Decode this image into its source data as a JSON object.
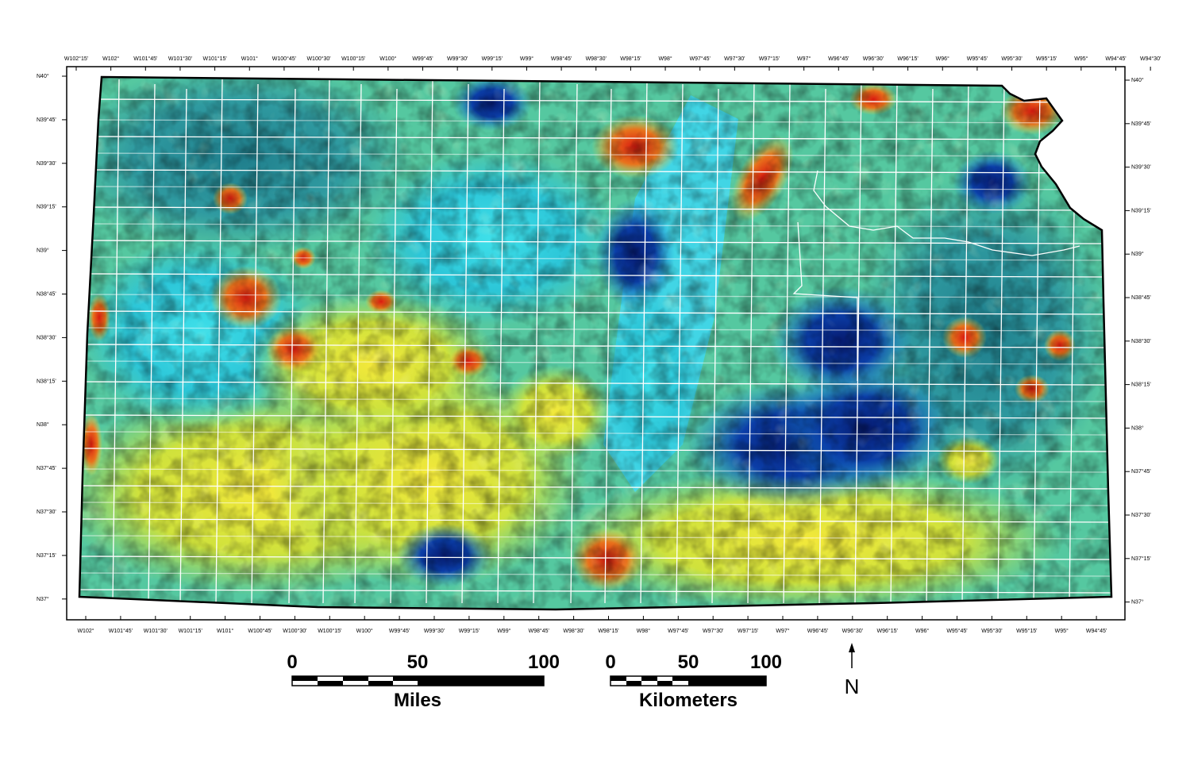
{
  "map": {
    "top_lon_labels": [
      "W102°15'",
      "W102°",
      "W101°45'",
      "W101°30'",
      "W101°15'",
      "W101°",
      "W100°45'",
      "W100°30'",
      "W100°15'",
      "W100°",
      "W99°45'",
      "W99°30'",
      "W99°15'",
      "W99°",
      "W98°45'",
      "W98°30'",
      "W98°15'",
      "W98°",
      "W97°45'",
      "W97°30'",
      "W97°15'",
      "W97°",
      "W96°45'",
      "W96°30'",
      "W96°15'",
      "W96°",
      "W95°45'",
      "W95°30'",
      "W95°15'",
      "W95°",
      "W94°45'",
      "W94°30'"
    ],
    "bottom_lon_labels": [
      "W102°",
      "W101°45'",
      "W101°30'",
      "W101°15'",
      "W101°",
      "W100°45'",
      "W100°30'",
      "W100°15'",
      "W100°",
      "W99°45'",
      "W99°30'",
      "W99°15'",
      "W99°",
      "W98°45'",
      "W98°30'",
      "W98°15'",
      "W98°",
      "W97°45'",
      "W97°30'",
      "W97°15'",
      "W97°",
      "W96°45'",
      "W96°30'",
      "W96°15'",
      "W96°",
      "W95°45'",
      "W95°30'",
      "W95°15'",
      "W95°",
      "W94°45'"
    ],
    "lat_labels": [
      "N40°",
      "N39°45'",
      "N39°30'",
      "N39°15'",
      "N39°",
      "N38°45'",
      "N38°30'",
      "N38°15'",
      "N38°",
      "N37°45'",
      "N37°30'",
      "N37°15'",
      "N37°"
    ]
  },
  "scale_miles": {
    "ticks": [
      "0",
      "50",
      "100"
    ],
    "unit": "Miles"
  },
  "scale_km": {
    "ticks": [
      "0",
      "50",
      "100"
    ],
    "unit": "Kilometers"
  },
  "north_arrow": {
    "letter": "N"
  }
}
